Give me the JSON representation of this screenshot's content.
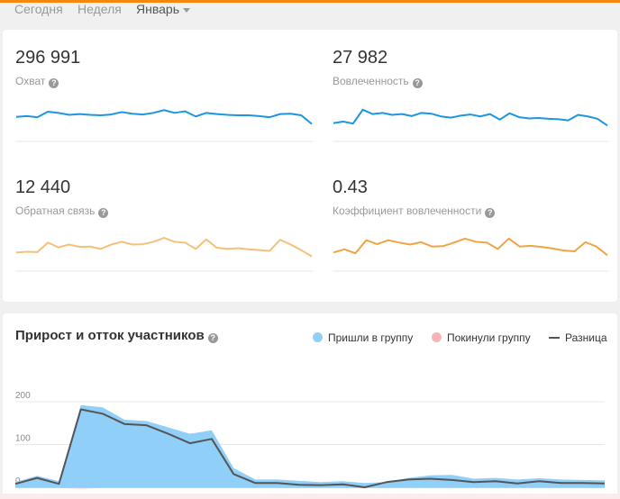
{
  "periods": [
    {
      "label": "Сегодня",
      "active": false
    },
    {
      "label": "Неделя",
      "active": false
    },
    {
      "label": "Январь",
      "active": true
    }
  ],
  "metrics": [
    {
      "value": "296 991",
      "label": "Охват",
      "color": "#1c96e0",
      "series": [
        62,
        64,
        61,
        75,
        72,
        67,
        69,
        67,
        66,
        68,
        74,
        70,
        68,
        72,
        79,
        72,
        76,
        63,
        72,
        69,
        67,
        66,
        66,
        64,
        61,
        69,
        70,
        66,
        44
      ]
    },
    {
      "value": "27 982",
      "label": "Вовлеченность",
      "color": "#1c96e0",
      "series": [
        46,
        50,
        45,
        80,
        69,
        72,
        67,
        69,
        64,
        72,
        70,
        63,
        60,
        65,
        68,
        63,
        69,
        55,
        71,
        61,
        58,
        59,
        57,
        56,
        53,
        67,
        63,
        57,
        40
      ]
    },
    {
      "value": "12 440",
      "label": "Обратная связь",
      "color": "#f5c07a",
      "series": [
        47,
        49,
        48,
        72,
        60,
        67,
        61,
        62,
        56,
        67,
        74,
        67,
        68,
        74,
        84,
        74,
        72,
        56,
        80,
        59,
        56,
        58,
        55,
        53,
        51,
        79,
        67,
        53,
        37
      ]
    },
    {
      "value": "0.43",
      "label": "Коэффициент вовлеченности",
      "color": "#f0a444",
      "series": [
        47,
        55,
        45,
        78,
        68,
        78,
        72,
        67,
        73,
        62,
        63,
        72,
        82,
        74,
        72,
        56,
        82,
        62,
        64,
        61,
        57,
        52,
        50,
        73,
        62,
        40
      ]
    }
  ],
  "growth_chart": {
    "title": "Прирост и отток участников",
    "legend": [
      {
        "label": "Пришли в группу",
        "color": "#8fcff8"
      },
      {
        "label": "Покинули группу",
        "color": "#f7b3b8"
      },
      {
        "label": "Разница",
        "color": "#555555"
      }
    ],
    "y_ticks": [
      "200",
      "100",
      "0"
    ],
    "ylim": [
      0,
      200
    ],
    "chart_data": {
      "type": "area",
      "ylim": [
        0,
        200
      ],
      "series": [
        {
          "name": "Пришли в группу",
          "color": "#8fcff8",
          "values": [
            12,
            27,
            14,
            192,
            187,
            158,
            155,
            140,
            125,
            133,
            45,
            18,
            18,
            15,
            12,
            14,
            10,
            12,
            22,
            28,
            29,
            20,
            22,
            18,
            21,
            18,
            17,
            16
          ]
        },
        {
          "name": "Покинули группу",
          "color": "#f7b3b8",
          "values": [
            -2,
            -2,
            -2,
            -3,
            -2,
            -2,
            -2,
            -2,
            -2,
            -2,
            -2,
            -2,
            -2,
            -2,
            -2,
            -2,
            -2,
            -2,
            -2,
            -2,
            -2,
            -2,
            -2,
            -2,
            -2,
            -2,
            -2,
            -2
          ]
        },
        {
          "name": "Разница",
          "color": "#555555",
          "values": [
            8,
            22,
            8,
            182,
            172,
            148,
            145,
            125,
            103,
            113,
            31,
            10,
            10,
            6,
            5,
            7,
            0,
            12,
            18,
            20,
            17,
            12,
            14,
            9,
            14,
            10,
            10,
            9
          ]
        }
      ]
    }
  }
}
